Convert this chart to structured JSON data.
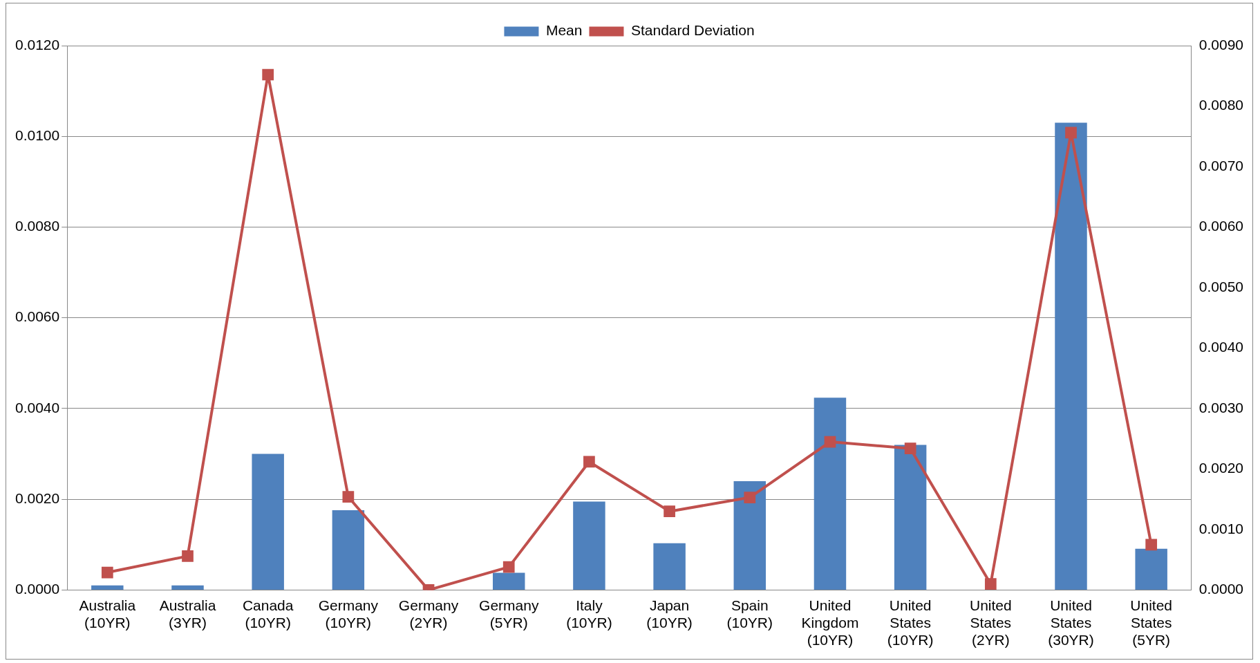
{
  "chart_data": {
    "type": "bar",
    "categories": [
      "Australia (10YR)",
      "Australia (3YR)",
      "Canada (10YR)",
      "Germany (10YR)",
      "Germany (2YR)",
      "Germany (5YR)",
      "Italy (10YR)",
      "Japan (10YR)",
      "Spain (10YR)",
      "United Kingdom (10YR)",
      "United States (10YR)",
      "United States (2YR)",
      "United States (30YR)",
      "United States (5YR)"
    ],
    "series": [
      {
        "name": "Mean",
        "color": "#4f81bd",
        "values": [
          0.0001,
          0.0001,
          0.003,
          0.00176,
          0,
          0.00038,
          0.00195,
          0.00103,
          0.0024,
          0.00424,
          0.0032,
          0,
          0.0103,
          0.00091
        ]
      },
      {
        "name": "Standard Deviation",
        "type": "line",
        "axis": "y2",
        "color": "#c0504d",
        "marker": "square",
        "values": [
          0.00029,
          0.00056,
          0.00852,
          0.00154,
          0,
          0.00038,
          0.00212,
          0.0013,
          0.00153,
          0.00245,
          0.00234,
          0.0001,
          0.00756,
          0.00075
        ]
      }
    ],
    "ylim": [
      0,
      0.012
    ],
    "yticks": [
      {
        "value": 0,
        "label": "0.0000"
      },
      {
        "value": 0.002,
        "label": "0.0020"
      },
      {
        "value": 0.004,
        "label": "0.0040"
      },
      {
        "value": 0.006,
        "label": "0.0060"
      },
      {
        "value": 0.008,
        "label": "0.0080"
      },
      {
        "value": 0.01,
        "label": "0.0100"
      },
      {
        "value": 0.012,
        "label": "0.0120"
      }
    ],
    "y2lim": [
      0,
      0.009
    ],
    "y2ticks": [
      {
        "value": 0,
        "label": "0.0000"
      },
      {
        "value": 0.001,
        "label": "0.0010"
      },
      {
        "value": 0.002,
        "label": "0.0020"
      },
      {
        "value": 0.003,
        "label": "0.0030"
      },
      {
        "value": 0.004,
        "label": "0.0040"
      },
      {
        "value": 0.005,
        "label": "0.0050"
      },
      {
        "value": 0.006,
        "label": "0.0060"
      },
      {
        "value": 0.007,
        "label": "0.0070"
      },
      {
        "value": 0.008,
        "label": "0.0080"
      },
      {
        "value": 0.009,
        "label": "0.0090"
      }
    ],
    "grid": "y",
    "legend": "top"
  }
}
